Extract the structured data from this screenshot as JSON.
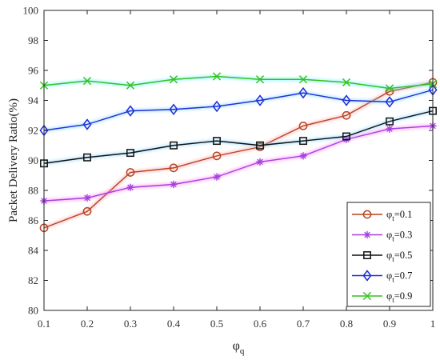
{
  "chart_data": {
    "type": "line",
    "xlabel": "φ",
    "xlabel_sub": "q",
    "ylabel": "Packet Delivery Ratio(%)",
    "xlim": [
      0.1,
      1.0
    ],
    "ylim": [
      80,
      100
    ],
    "x_ticks": [
      "0.1",
      "0.2",
      "0.3",
      "0.4",
      "0.5",
      "0.6",
      "0.7",
      "0.8",
      "0.9",
      "1"
    ],
    "y_ticks": [
      "80",
      "82",
      "84",
      "86",
      "88",
      "90",
      "92",
      "94",
      "96",
      "98",
      "100"
    ],
    "grid": false,
    "legend_position": "bottom-right",
    "x": [
      0.1,
      0.2,
      0.3,
      0.4,
      0.5,
      0.6,
      0.7,
      0.8,
      0.9,
      1.0
    ],
    "series": [
      {
        "label_prefix": "φ",
        "label_sub": "t",
        "label_suffix": "=0.1",
        "color": "#b5431f",
        "glow": "#ff9aa0",
        "marker": "circle",
        "values": [
          85.5,
          86.6,
          89.2,
          89.5,
          90.3,
          90.9,
          92.3,
          93.0,
          94.6,
          95.2
        ]
      },
      {
        "label_prefix": "φ",
        "label_sub": "t",
        "label_suffix": "=0.3",
        "color": "#a63fe0",
        "glow": "#ff7ff0",
        "marker": "star",
        "values": [
          87.3,
          87.5,
          88.2,
          88.4,
          88.9,
          89.9,
          90.3,
          91.4,
          92.1,
          92.3
        ]
      },
      {
        "label_prefix": "φ",
        "label_sub": "t",
        "label_suffix": "=0.5",
        "color": "#111111",
        "glow": "#7fd0ff",
        "marker": "square",
        "values": [
          89.8,
          90.2,
          90.5,
          91.0,
          91.3,
          91.0,
          91.3,
          91.6,
          92.6,
          93.3
        ]
      },
      {
        "label_prefix": "φ",
        "label_sub": "t",
        "label_suffix": "=0.7",
        "color": "#1f2fd6",
        "glow": "#7fd0ff",
        "marker": "diamond",
        "values": [
          92.0,
          92.4,
          93.3,
          93.4,
          93.6,
          94.0,
          94.5,
          94.0,
          93.9,
          94.7
        ]
      },
      {
        "label_prefix": "φ",
        "label_sub": "t",
        "label_suffix": "=0.9",
        "color": "#33c21d",
        "glow": "#5ff0ff",
        "marker": "x",
        "values": [
          95.0,
          95.3,
          95.0,
          95.4,
          95.6,
          95.4,
          95.4,
          95.2,
          94.8,
          95.1
        ]
      }
    ]
  }
}
